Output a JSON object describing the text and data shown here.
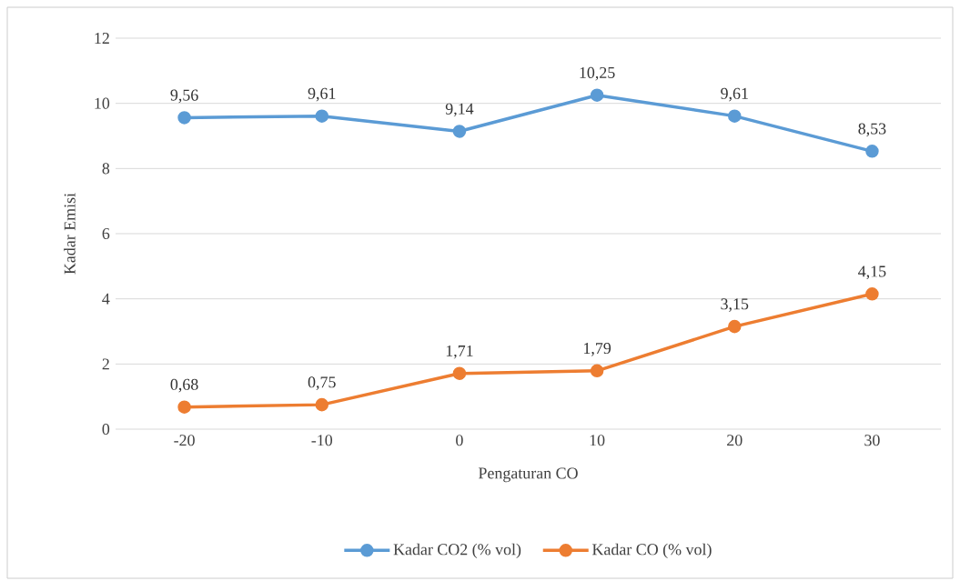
{
  "chart_data": {
    "type": "line",
    "xlabel": "Pengaturan CO",
    "ylabel": "Kadar Emisi",
    "categories": [
      "-20",
      "-10",
      "0",
      "10",
      "20",
      "30"
    ],
    "series": [
      {
        "name": "Kadar CO2 (% vol)",
        "color": "#5b9bd5",
        "values": [
          9.56,
          9.61,
          9.14,
          10.25,
          9.61,
          8.53
        ],
        "value_labels": [
          "9,56",
          "9,61",
          "9,14",
          "10,25",
          "9,61",
          "8,53"
        ]
      },
      {
        "name": "Kadar CO (% vol)",
        "color": "#ed7d31",
        "values": [
          0.68,
          0.75,
          1.71,
          1.79,
          3.15,
          4.15
        ],
        "value_labels": [
          "0,68",
          "0,75",
          "1,71",
          "1,79",
          "3,15",
          "4,15"
        ]
      }
    ],
    "ylim": [
      0,
      12
    ],
    "yticks": [
      0,
      2,
      4,
      6,
      8,
      10,
      12
    ],
    "grid": "y",
    "legend": "bottom",
    "marker": "circle",
    "line_style": "solid"
  }
}
